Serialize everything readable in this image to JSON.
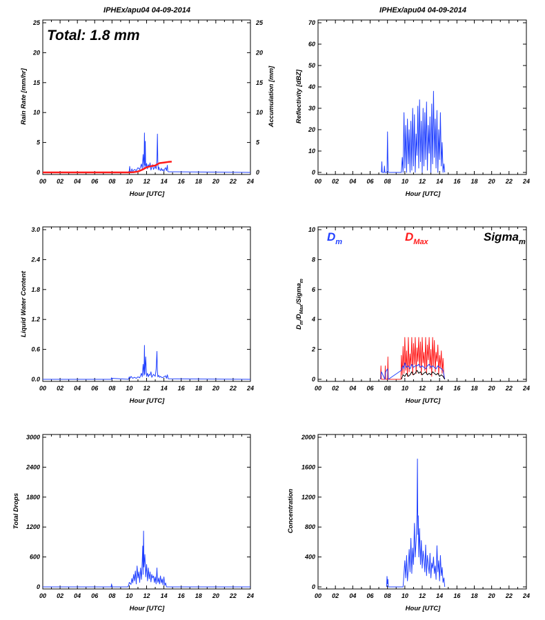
{
  "colors": {
    "blue": "#1f3fff",
    "red": "#ff1a1a",
    "black": "#000000"
  },
  "chart_data": [
    {
      "type": "line",
      "title": "IPHEx/apu04 04-09-2014",
      "xlabel": "Hour [UTC]",
      "ylabel": "Rain Rate [mm/hr]",
      "ylabel_right": "Accumulation [mm]",
      "xlim": [
        0,
        24
      ],
      "ylim": [
        0,
        25
      ],
      "ylim_right": [
        0,
        25
      ],
      "xticks": [
        "00",
        "02",
        "04",
        "06",
        "08",
        "10",
        "12",
        "14",
        "16",
        "18",
        "20",
        "22",
        "24"
      ],
      "yticks": [
        "0",
        "5",
        "10",
        "15",
        "20",
        "25"
      ],
      "yticks_right": [
        "0",
        "5",
        "10",
        "15",
        "20",
        "25"
      ],
      "annotation": "Total: 1.8 mm",
      "series": [
        {
          "color": "#1f3fff",
          "axis": "left",
          "x": [
            0,
            9.9,
            10.0,
            10.05,
            10.1,
            10.2,
            10.3,
            10.4,
            10.6,
            10.8,
            11.0,
            11.2,
            11.4,
            11.5,
            11.6,
            11.7,
            11.75,
            11.8,
            11.85,
            11.9,
            12.0,
            12.1,
            12.2,
            12.3,
            12.4,
            12.5,
            12.6,
            12.7,
            12.8,
            12.9,
            13.0,
            13.1,
            13.2,
            13.25,
            13.3,
            13.35,
            13.4,
            13.5,
            13.6,
            13.7,
            13.8,
            13.9,
            14.0,
            14.1,
            14.2,
            14.3,
            14.4,
            14.45,
            14.5,
            24
          ],
          "y": [
            0,
            0,
            0.3,
            1.0,
            0.2,
            0.1,
            0.6,
            0.2,
            0.5,
            0.3,
            0.8,
            0.5,
            1.4,
            0.6,
            3.0,
            0.8,
            6.6,
            1.2,
            5.2,
            0.7,
            1.5,
            0.6,
            1.3,
            0.9,
            1.6,
            0.4,
            0.9,
            1.3,
            0.5,
            0.8,
            1.0,
            0.6,
            2.2,
            6.4,
            1.8,
            0.4,
            0.9,
            0.5,
            0.3,
            0.7,
            0.3,
            0.5,
            0.2,
            0.6,
            0.8,
            0.3,
            1.2,
            0.2,
            0.1,
            0
          ]
        },
        {
          "color": "#ff1a1a",
          "axis": "right",
          "x": [
            0,
            9.9,
            10.5,
            11.0,
            11.5,
            12.0,
            12.5,
            13.0,
            13.3,
            13.5,
            14.0,
            14.5,
            14.9
          ],
          "y": [
            0,
            0,
            0.05,
            0.15,
            0.45,
            0.85,
            1.05,
            1.15,
            1.4,
            1.55,
            1.65,
            1.75,
            1.8
          ]
        }
      ]
    },
    {
      "type": "line",
      "title": "IPHEx/apu04 04-09-2014",
      "xlabel": "Hour [UTC]",
      "ylabel": "Reflectivity [dBZ]",
      "xlim": [
        0,
        24
      ],
      "ylim": [
        0,
        70
      ],
      "xticks": [
        "00",
        "02",
        "04",
        "06",
        "08",
        "10",
        "12",
        "14",
        "16",
        "18",
        "20",
        "22",
        "24"
      ],
      "yticks": [
        "0",
        "10",
        "20",
        "30",
        "40",
        "50",
        "60",
        "70"
      ],
      "series": [
        {
          "color": "#1f3fff",
          "x": [
            7.3,
            7.35,
            7.4,
            7.6,
            7.65,
            7.7,
            7.95,
            8.0,
            8.05,
            8.1,
            8.3,
            9.6,
            9.7,
            9.8,
            9.9,
            10.0,
            10.1,
            10.2,
            10.3,
            10.4,
            10.5,
            10.6,
            10.7,
            10.8,
            10.9,
            11.0,
            11.1,
            11.2,
            11.3,
            11.4,
            11.5,
            11.6,
            11.7,
            11.8,
            11.9,
            12.0,
            12.1,
            12.2,
            12.3,
            12.4,
            12.5,
            12.6,
            12.7,
            12.8,
            12.9,
            13.0,
            13.1,
            13.2,
            13.3,
            13.4,
            13.5,
            13.6,
            13.7,
            13.8,
            13.9,
            14.0,
            14.1,
            14.2,
            14.3,
            14.4,
            14.5,
            14.6
          ],
          "y": [
            0,
            5,
            0,
            0,
            3,
            0,
            0,
            19,
            6,
            0,
            0,
            0,
            7,
            0,
            28,
            2,
            22,
            0,
            25,
            4,
            20,
            0,
            24,
            1,
            30,
            3,
            27,
            0,
            18,
            8,
            31,
            2,
            34,
            5,
            24,
            0,
            30,
            3,
            28,
            6,
            33,
            1,
            22,
            9,
            26,
            0,
            32,
            4,
            38,
            7,
            25,
            2,
            29,
            0,
            20,
            6,
            28,
            3,
            14,
            0,
            4,
            0
          ]
        }
      ]
    },
    {
      "type": "line",
      "xlabel": "Hour [UTC]",
      "ylabel": "Liquid Water Content",
      "xlim": [
        0,
        24
      ],
      "ylim": [
        0,
        3.0
      ],
      "xticks": [
        "00",
        "02",
        "04",
        "06",
        "08",
        "10",
        "12",
        "14",
        "16",
        "18",
        "20",
        "22",
        "24"
      ],
      "yticks": [
        "0.0",
        "0.6",
        "1.2",
        "1.8",
        "2.4",
        "3.0"
      ],
      "series": [
        {
          "color": "#1f3fff",
          "x": [
            0,
            7.9,
            7.95,
            8.0,
            8.05,
            9.9,
            10.0,
            10.1,
            10.2,
            10.4,
            10.6,
            10.8,
            11.0,
            11.2,
            11.4,
            11.5,
            11.6,
            11.7,
            11.75,
            11.8,
            11.9,
            12.0,
            12.1,
            12.2,
            12.3,
            12.4,
            12.5,
            12.6,
            12.8,
            13.0,
            13.1,
            13.2,
            13.25,
            13.3,
            13.4,
            13.5,
            13.6,
            13.8,
            14.0,
            14.2,
            14.3,
            14.4,
            14.5,
            24
          ],
          "y": [
            0,
            0,
            0.03,
            0.0,
            0.02,
            0,
            0.05,
            0.02,
            0.06,
            0.02,
            0.04,
            0.02,
            0.05,
            0.03,
            0.12,
            0.05,
            0.3,
            0.08,
            0.68,
            0.1,
            0.45,
            0.06,
            0.12,
            0.05,
            0.1,
            0.08,
            0.15,
            0.04,
            0.1,
            0.06,
            0.2,
            0.56,
            0.15,
            0.05,
            0.08,
            0.04,
            0.06,
            0.03,
            0.05,
            0.07,
            0.02,
            0.09,
            0.01,
            0
          ]
        }
      ]
    },
    {
      "type": "line",
      "ylabel": "D_m/D_Max/Sigma_m",
      "xlabel": "Hour [UTC]",
      "xlim": [
        0,
        24
      ],
      "ylim": [
        0,
        10
      ],
      "xticks": [
        "00",
        "02",
        "04",
        "06",
        "08",
        "10",
        "12",
        "14",
        "16",
        "18",
        "20",
        "22",
        "24"
      ],
      "yticks": [
        "0",
        "2",
        "4",
        "6",
        "8",
        "10"
      ],
      "legend": [
        {
          "label": "D",
          "sub": "m",
          "color": "#1f3fff"
        },
        {
          "label": "D",
          "sub": "Max",
          "color": "#ff1a1a"
        },
        {
          "label": "Sigma",
          "sub": "m",
          "color": "#000000"
        }
      ],
      "series": [
        {
          "color": "#ff1a1a",
          "x": [
            7.2,
            7.25,
            7.3,
            7.7,
            7.75,
            7.8,
            8.0,
            8.05,
            8.1,
            9.55,
            9.6,
            9.7,
            9.8,
            9.9,
            10.0,
            10.1,
            10.2,
            10.3,
            10.4,
            10.5,
            10.6,
            10.7,
            10.8,
            10.9,
            11.0,
            11.1,
            11.2,
            11.3,
            11.4,
            11.5,
            11.6,
            11.7,
            11.8,
            11.9,
            12.0,
            12.1,
            12.2,
            12.3,
            12.4,
            12.5,
            12.6,
            12.7,
            12.8,
            12.9,
            13.0,
            13.1,
            13.2,
            13.3,
            13.4,
            13.5,
            13.6,
            13.7,
            13.8,
            13.9,
            14.0,
            14.1,
            14.2,
            14.3,
            14.4,
            14.5,
            14.6
          ],
          "y": [
            0,
            0.9,
            0,
            0,
            0.9,
            0,
            0,
            1.5,
            0,
            0,
            1.6,
            0.3,
            2.2,
            0.4,
            2.8,
            0.6,
            1.9,
            0.2,
            2.8,
            0.5,
            1.7,
            0.9,
            2.8,
            0.3,
            2.4,
            1.0,
            2.8,
            0.4,
            2.1,
            1.2,
            2.8,
            0.8,
            2.5,
            0.3,
            2.8,
            1.1,
            1.8,
            0.6,
            2.8,
            0.4,
            2.3,
            1.3,
            2.8,
            0.7,
            2.0,
            0.2,
            2.8,
            0.9,
            2.6,
            0.5,
            1.8,
            1.2,
            2.3,
            0.3,
            1.6,
            0.8,
            1.9,
            0.4,
            1.4,
            0.1,
            0
          ]
        },
        {
          "color": "#1f3fff",
          "x": [
            7.2,
            7.3,
            7.7,
            7.8,
            8.0,
            8.1,
            9.6,
            9.7,
            9.8,
            9.9,
            10.0,
            10.2,
            10.4,
            10.6,
            10.8,
            11.0,
            11.2,
            11.4,
            11.6,
            11.8,
            12.0,
            12.2,
            12.4,
            12.6,
            12.8,
            13.0,
            13.2,
            13.4,
            13.6,
            13.8,
            14.0,
            14.2,
            14.4,
            14.6
          ],
          "y": [
            0,
            0.5,
            0,
            0.5,
            0.7,
            0,
            0.6,
            0.8,
            0.9,
            0.7,
            1.1,
            0.8,
            0.9,
            0.7,
            1.0,
            0.8,
            0.9,
            0.9,
            1.0,
            0.8,
            0.9,
            0.8,
            0.7,
            0.9,
            1.0,
            0.8,
            0.9,
            0.8,
            0.7,
            0.9,
            0.8,
            0.7,
            0.6,
            0
          ]
        },
        {
          "color": "#000000",
          "x": [
            9.6,
            9.8,
            10.0,
            10.2,
            10.4,
            10.6,
            10.8,
            11.0,
            11.2,
            11.4,
            11.6,
            11.8,
            12.0,
            12.2,
            12.4,
            12.6,
            12.8,
            13.0,
            13.2,
            13.4,
            13.6,
            13.8,
            14.0,
            14.2,
            14.4,
            14.6
          ],
          "y": [
            0,
            0.3,
            0.2,
            0.4,
            0.2,
            0.3,
            0.5,
            0.3,
            0.4,
            0.6,
            0.4,
            0.5,
            0.3,
            0.4,
            0.5,
            0.3,
            0.4,
            0.3,
            0.5,
            0.4,
            0.3,
            0.4,
            0.2,
            0.3,
            0.2,
            0
          ]
        }
      ]
    },
    {
      "type": "line",
      "xlabel": "Hour [UTC]",
      "ylabel": "Total Drops",
      "xlim": [
        0,
        24
      ],
      "ylim": [
        0,
        3000
      ],
      "xticks": [
        "00",
        "02",
        "04",
        "06",
        "08",
        "10",
        "12",
        "14",
        "16",
        "18",
        "20",
        "22",
        "24"
      ],
      "yticks": [
        "0",
        "600",
        "1200",
        "1800",
        "2400",
        "3000"
      ],
      "series": [
        {
          "color": "#1f3fff",
          "x": [
            0,
            7.9,
            7.95,
            8.0,
            9.8,
            9.9,
            10.0,
            10.2,
            10.3,
            10.4,
            10.5,
            10.6,
            10.7,
            10.8,
            10.9,
            11.0,
            11.1,
            11.2,
            11.3,
            11.4,
            11.5,
            11.55,
            11.6,
            11.65,
            11.7,
            11.8,
            11.9,
            12.0,
            12.1,
            12.2,
            12.3,
            12.4,
            12.5,
            12.6,
            12.7,
            12.8,
            12.9,
            13.0,
            13.1,
            13.2,
            13.25,
            13.3,
            13.4,
            13.5,
            13.6,
            13.7,
            13.8,
            13.9,
            14.0,
            14.1,
            14.2,
            14.3,
            24
          ],
          "y": [
            0,
            0,
            60,
            0,
            0,
            20,
            90,
            50,
            170,
            80,
            250,
            120,
            320,
            60,
            420,
            180,
            300,
            90,
            380,
            150,
            520,
            820,
            250,
            1120,
            400,
            650,
            200,
            450,
            120,
            380,
            160,
            300,
            100,
            250,
            180,
            220,
            90,
            200,
            60,
            380,
            150,
            90,
            180,
            60,
            220,
            80,
            160,
            40,
            200,
            30,
            80,
            0,
            0
          ]
        }
      ]
    },
    {
      "type": "line",
      "xlabel": "Hour [UTC]",
      "ylabel": "Concentration",
      "xlim": [
        0,
        24
      ],
      "ylim": [
        0,
        2000
      ],
      "xticks": [
        "00",
        "02",
        "04",
        "06",
        "08",
        "10",
        "12",
        "14",
        "16",
        "18",
        "20",
        "22",
        "24"
      ],
      "yticks": [
        "0",
        "400",
        "800",
        "1200",
        "1600",
        "2000"
      ],
      "series": [
        {
          "color": "#1f3fff",
          "x": [
            7.9,
            7.95,
            8.0,
            8.05,
            8.1,
            9.8,
            9.9,
            10.0,
            10.1,
            10.2,
            10.3,
            10.4,
            10.5,
            10.6,
            10.7,
            10.8,
            10.9,
            11.0,
            11.1,
            11.2,
            11.3,
            11.4,
            11.45,
            11.5,
            11.55,
            11.6,
            11.7,
            11.8,
            11.9,
            12.0,
            12.1,
            12.2,
            12.3,
            12.4,
            12.5,
            12.6,
            12.7,
            12.8,
            12.9,
            13.0,
            13.1,
            13.2,
            13.3,
            13.4,
            13.5,
            13.6,
            13.7,
            13.8,
            13.9,
            14.0,
            14.1,
            14.2,
            14.3,
            14.4,
            14.5,
            14.6
          ],
          "y": [
            0,
            140,
            40,
            100,
            0,
            0,
            180,
            350,
            120,
            420,
            80,
            250,
            500,
            200,
            650,
            180,
            520,
            300,
            850,
            400,
            620,
            1000,
            1710,
            700,
            950,
            400,
            780,
            300,
            620,
            250,
            480,
            380,
            200,
            560,
            150,
            420,
            300,
            180,
            450,
            120,
            320,
            250,
            400,
            180,
            280,
            100,
            550,
            200,
            350,
            80,
            420,
            150,
            260,
            60,
            120,
            0
          ]
        }
      ]
    }
  ]
}
